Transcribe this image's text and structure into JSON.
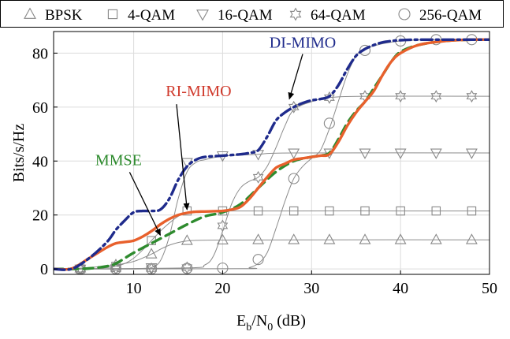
{
  "chart_data": {
    "type": "line",
    "title": "",
    "xlabel": {
      "main": "E",
      "sub1": "b",
      "mid": "/N",
      "sub2": "0",
      "unit": " (dB)"
    },
    "ylabel": "Bits/s/Hz",
    "xlim": [
      1,
      50
    ],
    "ylim": [
      -2,
      88
    ],
    "xticks": [
      10,
      20,
      30,
      40,
      50
    ],
    "yticks": [
      0,
      20,
      40,
      60,
      80
    ],
    "grid": true,
    "legend_position": "top",
    "legend": [
      {
        "label": "BPSK",
        "marker": "triangle"
      },
      {
        "label": "4-QAM",
        "marker": "square"
      },
      {
        "label": "16-QAM",
        "marker": "triangle-down"
      },
      {
        "label": "64-QAM",
        "marker": "hexagram"
      },
      {
        "label": "256-QAM",
        "marker": "circle"
      }
    ],
    "marker_series": [
      {
        "name": "BPSK",
        "marker": "triangle",
        "x": [
          4,
          8,
          12,
          16,
          20,
          24,
          28,
          32,
          36,
          40,
          44,
          48
        ],
        "y": [
          0.3,
          1.5,
          5.5,
          10.5,
          10.7,
          10.8,
          10.8,
          10.8,
          10.8,
          10.8,
          10.8,
          10.8
        ]
      },
      {
        "name": "4-QAM",
        "marker": "square",
        "x": [
          4,
          8,
          12,
          16,
          20,
          24,
          28,
          32,
          36,
          40,
          44,
          48
        ],
        "y": [
          0.0,
          1.0,
          10.5,
          21.5,
          21.5,
          21.5,
          21.5,
          21.5,
          21.5,
          21.5,
          21.5,
          21.5
        ]
      },
      {
        "name": "16-QAM",
        "marker": "triangle-down",
        "x": [
          4,
          8,
          12,
          16,
          20,
          24,
          28,
          32,
          36,
          40,
          44,
          48
        ],
        "y": [
          0.0,
          0.1,
          0.5,
          39.5,
          42.0,
          42.5,
          43.0,
          43.0,
          43.0,
          43.0,
          43.0,
          43.0
        ]
      },
      {
        "name": "64-QAM",
        "marker": "hexagram",
        "x": [
          4,
          8,
          12,
          16,
          20,
          24,
          28,
          32,
          36,
          40,
          44,
          48
        ],
        "y": [
          0.0,
          0.0,
          0.1,
          0.5,
          16.0,
          34.0,
          60.0,
          63.5,
          64.0,
          64.0,
          64.0,
          64.0
        ]
      },
      {
        "name": "256-QAM",
        "marker": "circle",
        "x": [
          4,
          8,
          12,
          16,
          20,
          24,
          28,
          32,
          36,
          40,
          44,
          48
        ],
        "y": [
          0.0,
          0.0,
          0.0,
          0.2,
          0.3,
          3.5,
          33.5,
          54.0,
          81.0,
          84.5,
          85.0,
          85.0
        ]
      }
    ],
    "thin_curves": [
      {
        "name": "BPSK",
        "x": [
          1,
          4,
          6,
          8,
          10,
          12,
          13,
          14,
          15,
          16,
          17,
          20,
          30,
          50
        ],
        "y": [
          0,
          0.3,
          0.8,
          1.5,
          2.8,
          5.5,
          7.3,
          8.8,
          9.8,
          10.4,
          10.6,
          10.7,
          10.8,
          10.8
        ]
      },
      {
        "name": "4-QAM",
        "x": [
          1,
          4,
          6,
          8,
          9,
          10,
          11,
          12,
          13,
          14,
          15,
          16,
          17,
          20,
          50
        ],
        "y": [
          0,
          0,
          0.2,
          1,
          2,
          4,
          7,
          10.5,
          14,
          17,
          19.5,
          21,
          21.4,
          21.5,
          21.5
        ]
      },
      {
        "name": "16-QAM",
        "x": [
          1,
          10,
          11,
          12,
          13,
          14,
          15,
          16,
          17,
          18,
          20,
          24,
          28,
          50
        ],
        "y": [
          0,
          0,
          0.2,
          0.5,
          3,
          12,
          26,
          36,
          39.5,
          40.5,
          41.8,
          42.5,
          43,
          43
        ]
      },
      {
        "name": "64-QAM",
        "x": [
          1,
          16,
          18,
          19,
          20,
          21,
          22,
          23,
          24,
          25,
          26,
          27,
          28,
          30,
          32,
          36,
          50
        ],
        "y": [
          0,
          0.4,
          1.5,
          5,
          14,
          24,
          30,
          32.5,
          34,
          38,
          45,
          53,
          59,
          62,
          63.5,
          64,
          64
        ]
      },
      {
        "name": "256-QAM",
        "x": [
          1,
          22,
          23,
          24,
          25,
          26,
          27,
          28,
          29,
          30,
          31,
          32,
          33,
          34,
          35,
          36,
          38,
          40,
          44,
          50
        ],
        "y": [
          0,
          0.1,
          0.5,
          2,
          6,
          15,
          25,
          33.5,
          38,
          41,
          44,
          52,
          62,
          72,
          79,
          81.5,
          83.5,
          84.5,
          85,
          85
        ]
      }
    ],
    "series": [
      {
        "name": "DI-MIMO",
        "color": "#1f2b8c",
        "dash": "dash-dot",
        "x": [
          1,
          3,
          5,
          7,
          8,
          9,
          10,
          11,
          12,
          13,
          14,
          15,
          16,
          17,
          18,
          20,
          22,
          23,
          24,
          25,
          26,
          27,
          28,
          29,
          30,
          31,
          32,
          33,
          34,
          35,
          36,
          37,
          38,
          39,
          40,
          42,
          45,
          48,
          50
        ],
        "y": [
          0,
          0,
          4,
          10,
          14.5,
          18,
          21,
          21.5,
          21.5,
          22,
          26,
          33,
          38,
          40.5,
          41.5,
          42,
          42.5,
          43,
          44,
          49,
          55,
          58,
          60,
          61.5,
          62.5,
          63,
          64,
          68,
          74,
          79,
          81.5,
          83,
          84,
          84.5,
          84.8,
          85,
          85,
          85,
          85
        ]
      },
      {
        "name": "RI-MIMO",
        "color": "#e8602c",
        "dash": "solid",
        "x": [
          1,
          3,
          5,
          7,
          8,
          9,
          10,
          11,
          12,
          13,
          14,
          15,
          16,
          17,
          18,
          19,
          20,
          21,
          22,
          23,
          24,
          25,
          26,
          27,
          28,
          29,
          30,
          31,
          32,
          33,
          34,
          35,
          36,
          37,
          38,
          39,
          40,
          42,
          45,
          48,
          50
        ],
        "y": [
          0,
          0.1,
          4,
          8,
          9.5,
          10,
          10.5,
          12,
          14,
          16.5,
          18.5,
          20,
          20.8,
          21.2,
          21.3,
          21.4,
          21.5,
          22,
          23,
          26,
          30,
          34,
          37.5,
          39,
          40.5,
          41,
          41.5,
          42,
          42.5,
          47,
          53,
          58,
          62,
          66,
          72,
          77,
          80,
          83,
          84.5,
          85,
          85
        ]
      },
      {
        "name": "MMSE",
        "color": "#2e8b2e",
        "dash": "dashed",
        "x": [
          1,
          3,
          5,
          7,
          8,
          9,
          10,
          12,
          14,
          16,
          18,
          20,
          22,
          24,
          26,
          28,
          30,
          31,
          32,
          33,
          34,
          35,
          36,
          37,
          38,
          39,
          40,
          42,
          45,
          48,
          50
        ],
        "y": [
          0,
          0,
          0.2,
          1,
          2,
          4,
          6,
          9.5,
          13,
          16.5,
          19.5,
          21,
          24,
          30,
          36,
          40,
          41.5,
          42,
          43,
          48,
          54,
          58.5,
          62,
          67,
          72,
          77,
          80.5,
          83,
          84.5,
          85,
          85
        ]
      }
    ],
    "annotations": [
      {
        "text": "DI-MIMO",
        "color": "#1f2b8c",
        "xy": [
          27.5,
          63
        ],
        "xytext": [
          29,
          82
        ]
      },
      {
        "text": "RI-MIMO",
        "color": "#d0392b",
        "xy": [
          16,
          22
        ],
        "xytext": [
          17.3,
          64
        ]
      },
      {
        "text": "MMSE",
        "color": "#2e8b2e",
        "xy": [
          13,
          12.5
        ],
        "xytext": [
          8.3,
          38.5
        ]
      }
    ]
  }
}
